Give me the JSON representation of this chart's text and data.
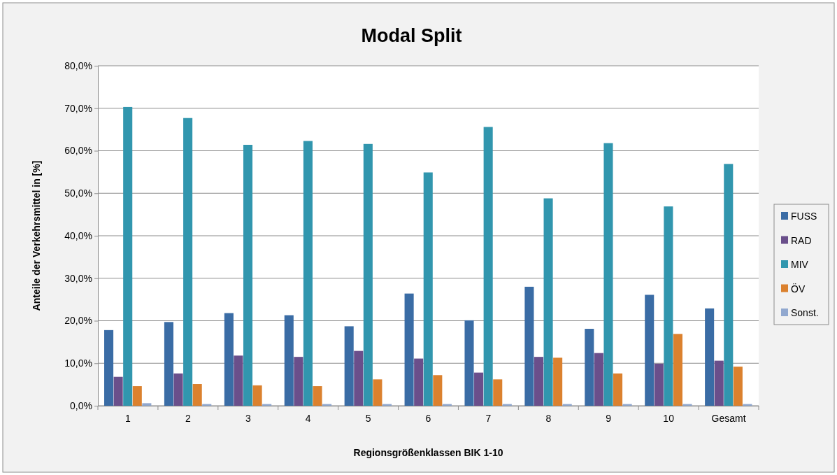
{
  "chart_data": {
    "type": "bar",
    "title": "Modal Split",
    "xlabel": "Regionsgrößenklassen  BIK 1-10",
    "ylabel": "Anteile der Verkehrsmittel in [%]",
    "categories": [
      "1",
      "2",
      "3",
      "4",
      "5",
      "6",
      "7",
      "8",
      "9",
      "10",
      "Gesamt"
    ],
    "series": [
      {
        "name": "FUSS",
        "color": "#3a6ca5",
        "values": [
          17.8,
          19.7,
          21.8,
          21.3,
          18.7,
          26.4,
          20.1,
          28.0,
          18.1,
          26.1,
          22.9
        ]
      },
      {
        "name": "RAD",
        "color": "#6a4f8b",
        "values": [
          6.8,
          7.6,
          11.8,
          11.5,
          12.9,
          11.1,
          7.8,
          11.5,
          12.4,
          9.9,
          10.6
        ]
      },
      {
        "name": "MIV",
        "color": "#3196ae",
        "values": [
          70.3,
          67.7,
          61.4,
          62.3,
          61.6,
          54.9,
          65.6,
          48.8,
          61.8,
          46.9,
          56.9
        ]
      },
      {
        "name": "ÖV",
        "color": "#db812e",
        "values": [
          4.6,
          5.1,
          4.8,
          4.6,
          6.2,
          7.2,
          6.2,
          11.3,
          7.6,
          16.9,
          9.2
        ]
      },
      {
        "name": "Sonst.",
        "color": "#91a8cf",
        "values": [
          0.6,
          0.4,
          0.4,
          0.4,
          0.4,
          0.4,
          0.4,
          0.4,
          0.4,
          0.4,
          0.4
        ]
      }
    ],
    "ylim": [
      0,
      80
    ],
    "yticks": [
      {
        "value": 0,
        "label": "0,0%"
      },
      {
        "value": 10,
        "label": "10,0%"
      },
      {
        "value": 20,
        "label": "20,0%"
      },
      {
        "value": 30,
        "label": "30,0%"
      },
      {
        "value": 40,
        "label": "40,0%"
      },
      {
        "value": 50,
        "label": "50,0%"
      },
      {
        "value": 60,
        "label": "60,0%"
      },
      {
        "value": 70,
        "label": "70,0%"
      },
      {
        "value": 80,
        "label": "80,0%"
      }
    ],
    "grid": "y",
    "legend": "right"
  }
}
